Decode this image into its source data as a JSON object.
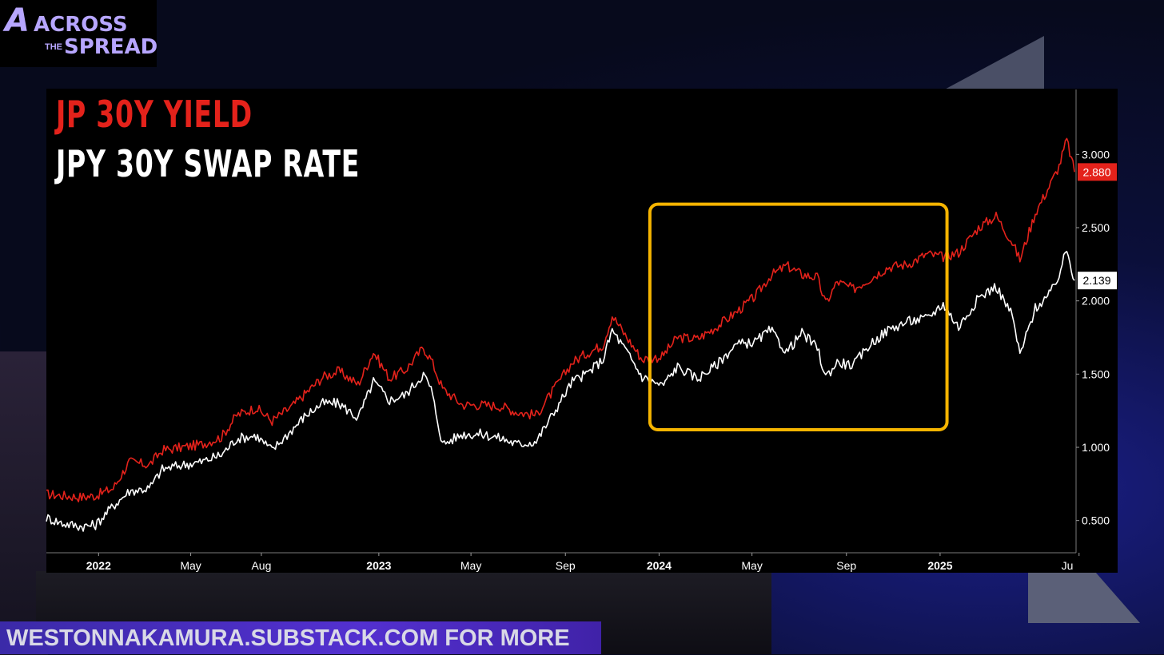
{
  "logo": {
    "word1": "ACROSS",
    "word2": "THE",
    "word3": "SPREAD"
  },
  "footer": {
    "text": "WESTONNAKAMURA.SUBSTACK.COM FOR MORE"
  },
  "colors": {
    "yield": "#e4221b",
    "swap": "#ffffff",
    "highlight": "#f5b400"
  },
  "chart_data": {
    "type": "line",
    "title_lines": [
      "JP 30Y YIELD",
      "JPY 30Y SWAP RATE"
    ],
    "x_tick_labels": [
      "2022",
      "May",
      "Aug",
      "2023",
      "May",
      "Sep",
      "2024",
      "May",
      "Sep",
      "2025",
      "Jul"
    ],
    "x_tick_dates": [
      "2022-01-01",
      "2022-05-01",
      "2022-08-01",
      "2023-01-01",
      "2023-05-01",
      "2023-09-01",
      "2024-01-01",
      "2024-05-01",
      "2024-09-01",
      "2025-01-01",
      "2025-07-01"
    ],
    "x_range": [
      "2021-10-25",
      "2025-06-25"
    ],
    "y_ticks": [
      "0.500",
      "1.000",
      "1.500",
      "2.000",
      "2.500",
      "3.000"
    ],
    "ylim": [
      0.28,
      3.4
    ],
    "last_value_labels": [
      {
        "series": "JP 30Y YIELD",
        "label": "2.880",
        "value": 2.88
      },
      {
        "series": "JPY 30Y SWAP RATE",
        "label": "2.139",
        "value": 2.139
      }
    ],
    "highlight_box": {
      "x_start": "2023-12-20",
      "x_end": "2025-01-10",
      "y_min": 1.12,
      "y_max": 2.66
    },
    "series": [
      {
        "name": "JP 30Y YIELD",
        "dates": [
          "2021-10-25",
          "2021-11-15",
          "2021-12-10",
          "2021-12-28",
          "2022-01-20",
          "2022-02-10",
          "2022-03-08",
          "2022-03-25",
          "2022-04-20",
          "2022-05-15",
          "2022-06-10",
          "2022-06-30",
          "2022-07-25",
          "2022-08-15",
          "2022-09-10",
          "2022-09-28",
          "2022-10-20",
          "2022-11-10",
          "2022-12-05",
          "2022-12-25",
          "2023-01-15",
          "2023-02-05",
          "2023-02-28",
          "2023-03-10",
          "2023-03-25",
          "2023-04-20",
          "2023-05-15",
          "2023-06-10",
          "2023-06-30",
          "2023-07-25",
          "2023-08-15",
          "2023-09-10",
          "2023-09-28",
          "2023-10-20",
          "2023-11-01",
          "2023-11-20",
          "2023-12-10",
          "2024-01-05",
          "2024-01-25",
          "2024-02-20",
          "2024-03-15",
          "2024-04-10",
          "2024-05-05",
          "2024-05-25",
          "2024-06-15",
          "2024-07-05",
          "2024-07-25",
          "2024-08-05",
          "2024-08-20",
          "2024-09-10",
          "2024-10-01",
          "2024-10-25",
          "2024-11-20",
          "2024-12-15",
          "2025-01-05",
          "2025-01-25",
          "2025-02-20",
          "2025-03-15",
          "2025-04-05",
          "2025-04-15",
          "2025-05-05",
          "2025-05-25",
          "2025-06-05",
          "2025-06-15",
          "2025-06-25"
        ],
        "values": [
          0.68,
          0.67,
          0.66,
          0.67,
          0.72,
          0.9,
          0.88,
          0.98,
          1.0,
          1.02,
          1.07,
          1.22,
          1.27,
          1.18,
          1.28,
          1.37,
          1.48,
          1.52,
          1.43,
          1.65,
          1.47,
          1.53,
          1.68,
          1.6,
          1.4,
          1.29,
          1.29,
          1.28,
          1.24,
          1.22,
          1.38,
          1.58,
          1.64,
          1.7,
          1.9,
          1.75,
          1.6,
          1.62,
          1.75,
          1.74,
          1.82,
          1.92,
          2.03,
          2.17,
          2.24,
          2.18,
          2.16,
          1.98,
          2.13,
          2.08,
          2.15,
          2.23,
          2.25,
          2.32,
          2.3,
          2.33,
          2.5,
          2.58,
          2.4,
          2.28,
          2.6,
          2.8,
          2.92,
          3.1,
          2.88
        ]
      },
      {
        "name": "JPY 30Y SWAP RATE",
        "dates": [
          "2021-10-25",
          "2021-11-15",
          "2021-12-10",
          "2021-12-28",
          "2022-01-20",
          "2022-02-10",
          "2022-03-08",
          "2022-03-25",
          "2022-04-20",
          "2022-05-15",
          "2022-06-10",
          "2022-06-30",
          "2022-07-25",
          "2022-08-15",
          "2022-09-10",
          "2022-09-28",
          "2022-10-20",
          "2022-11-10",
          "2022-12-05",
          "2022-12-25",
          "2023-01-15",
          "2023-02-05",
          "2023-02-28",
          "2023-03-10",
          "2023-03-25",
          "2023-04-20",
          "2023-05-15",
          "2023-06-10",
          "2023-06-30",
          "2023-07-25",
          "2023-08-15",
          "2023-09-10",
          "2023-09-28",
          "2023-10-20",
          "2023-11-01",
          "2023-11-20",
          "2023-12-10",
          "2024-01-05",
          "2024-01-25",
          "2024-02-20",
          "2024-03-15",
          "2024-04-10",
          "2024-05-05",
          "2024-05-25",
          "2024-06-15",
          "2024-07-05",
          "2024-07-25",
          "2024-08-05",
          "2024-08-20",
          "2024-09-10",
          "2024-10-01",
          "2024-10-25",
          "2024-11-20",
          "2024-12-15",
          "2025-01-05",
          "2025-01-25",
          "2025-02-20",
          "2025-03-15",
          "2025-04-05",
          "2025-04-15",
          "2025-05-05",
          "2025-05-25",
          "2025-06-05",
          "2025-06-15",
          "2025-06-25"
        ],
        "values": [
          0.52,
          0.48,
          0.46,
          0.47,
          0.6,
          0.7,
          0.72,
          0.85,
          0.88,
          0.9,
          0.95,
          1.06,
          1.08,
          0.98,
          1.12,
          1.22,
          1.3,
          1.3,
          1.2,
          1.45,
          1.32,
          1.36,
          1.5,
          1.4,
          1.02,
          1.09,
          1.09,
          1.06,
          1.02,
          1.04,
          1.22,
          1.45,
          1.5,
          1.6,
          1.8,
          1.65,
          1.48,
          1.42,
          1.55,
          1.47,
          1.56,
          1.7,
          1.72,
          1.8,
          1.65,
          1.78,
          1.68,
          1.48,
          1.58,
          1.56,
          1.7,
          1.8,
          1.86,
          1.88,
          1.98,
          1.82,
          2.02,
          2.1,
          1.9,
          1.63,
          1.95,
          2.05,
          2.18,
          2.35,
          2.139
        ]
      }
    ],
    "xlabel": "",
    "ylabel": "",
    "grid": false,
    "legend": "none"
  }
}
